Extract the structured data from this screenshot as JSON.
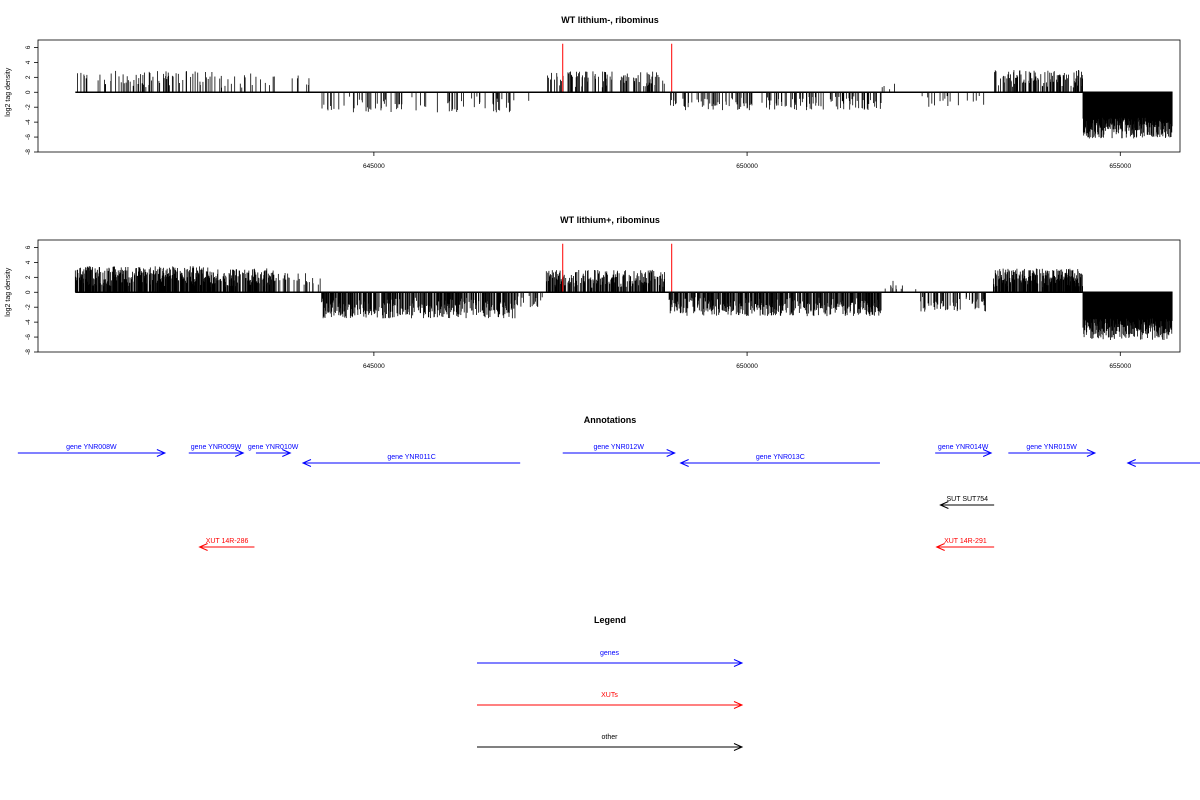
{
  "chart_data": [
    {
      "type": "bar",
      "title": "WT lithium-, ribominus",
      "ylabel": "log2 tag density",
      "xlim": [
        640500,
        655800
      ],
      "ylim": [
        -8,
        7
      ],
      "yticks": [
        6,
        4,
        2,
        0,
        -2,
        -4,
        -6,
        -8
      ],
      "xticks": [
        645000,
        650000,
        655000
      ],
      "xtick_labels": [
        "645000",
        "650000",
        "655000"
      ],
      "grid": false,
      "bar_color": "#000000",
      "highlight_color": "#ff0000",
      "highlights": [
        {
          "x": 647530,
          "value": 6.5
        },
        {
          "x": 648990,
          "value": 6.5
        }
      ],
      "segments": [
        {
          "from": 641000,
          "to": 642850,
          "strand": "+",
          "amp": 2.9,
          "density": 0.2
        },
        {
          "from": 642850,
          "to": 643700,
          "strand": "+",
          "amp": 2.6,
          "density": 0.1
        },
        {
          "from": 643700,
          "to": 644300,
          "strand": "+",
          "amp": 2.4,
          "density": 0.03
        },
        {
          "from": 644300,
          "to": 646900,
          "strand": "-",
          "amp": 2.7,
          "density": 0.12
        },
        {
          "from": 646900,
          "to": 647300,
          "strand": "-",
          "amp": 1.5,
          "density": 0.02
        },
        {
          "from": 647300,
          "to": 648900,
          "strand": "+",
          "amp": 2.8,
          "density": 0.3
        },
        {
          "from": 648950,
          "to": 651800,
          "strand": "-",
          "amp": 2.4,
          "density": 0.22
        },
        {
          "from": 651800,
          "to": 652300,
          "strand": "+",
          "amp": 1.5,
          "density": 0.03
        },
        {
          "from": 652300,
          "to": 653200,
          "strand": "-",
          "amp": 2.0,
          "density": 0.08
        },
        {
          "from": 653300,
          "to": 654500,
          "strand": "+",
          "amp": 3.0,
          "density": 0.4
        },
        {
          "from": 654500,
          "to": 655700,
          "strand": "-",
          "amp": 6.2,
          "density": 1.0
        }
      ]
    },
    {
      "type": "bar",
      "title": "WT lithium+, ribominus",
      "ylabel": "log2 tag density",
      "xlim": [
        640500,
        655800
      ],
      "ylim": [
        -8,
        7
      ],
      "yticks": [
        6,
        4,
        2,
        0,
        -2,
        -4,
        -6,
        -8
      ],
      "xticks": [
        645000,
        650000,
        655000
      ],
      "xtick_labels": [
        "645000",
        "650000",
        "655000"
      ],
      "grid": false,
      "bar_color": "#000000",
      "highlight_color": "#ff0000",
      "highlights": [
        {
          "x": 647530,
          "value": 6.5
        },
        {
          "x": 648990,
          "value": 6.5
        }
      ],
      "segments": [
        {
          "from": 641000,
          "to": 642850,
          "strand": "+",
          "amp": 3.5,
          "density": 0.8
        },
        {
          "from": 642850,
          "to": 643700,
          "strand": "+",
          "amp": 3.2,
          "density": 0.6
        },
        {
          "from": 643700,
          "to": 644300,
          "strand": "+",
          "amp": 2.6,
          "density": 0.2
        },
        {
          "from": 644300,
          "to": 646900,
          "strand": "-",
          "amp": 3.5,
          "density": 0.6
        },
        {
          "from": 646900,
          "to": 647300,
          "strand": "-",
          "amp": 2.0,
          "density": 0.15
        },
        {
          "from": 647300,
          "to": 648900,
          "strand": "+",
          "amp": 3.0,
          "density": 0.6
        },
        {
          "from": 648950,
          "to": 651800,
          "strand": "-",
          "amp": 3.2,
          "density": 0.6
        },
        {
          "from": 651800,
          "to": 652300,
          "strand": "+",
          "amp": 1.6,
          "density": 0.1
        },
        {
          "from": 652300,
          "to": 653200,
          "strand": "-",
          "amp": 2.6,
          "density": 0.3
        },
        {
          "from": 653300,
          "to": 654500,
          "strand": "+",
          "amp": 3.2,
          "density": 0.8
        },
        {
          "from": 654500,
          "to": 655700,
          "strand": "-",
          "amp": 6.4,
          "density": 1.0
        }
      ]
    }
  ],
  "annotations": {
    "title": "Annotations",
    "xlim": [
      640500,
      655800
    ],
    "features": [
      {
        "label": "gene YNR008W",
        "type": "gene",
        "strand": "+",
        "start": 640230,
        "end": 642200,
        "track": 0
      },
      {
        "label": "gene YNR009W",
        "type": "gene",
        "strand": "+",
        "start": 642520,
        "end": 643250,
        "track": 0
      },
      {
        "label": "gene YNR010W",
        "type": "gene",
        "strand": "+",
        "start": 643420,
        "end": 643880,
        "track": 0
      },
      {
        "label": "gene YNR011C",
        "type": "gene",
        "strand": "-",
        "start": 644050,
        "end": 646960,
        "track": 1
      },
      {
        "label": "gene YNR012W",
        "type": "gene",
        "strand": "+",
        "start": 647530,
        "end": 649030,
        "track": 0
      },
      {
        "label": "gene YNR013C",
        "type": "gene",
        "strand": "-",
        "start": 649110,
        "end": 651780,
        "track": 1
      },
      {
        "label": "gene YNR014W",
        "type": "gene",
        "strand": "+",
        "start": 652520,
        "end": 653270,
        "track": 0
      },
      {
        "label": "gene YNR015W",
        "type": "gene",
        "strand": "+",
        "start": 653500,
        "end": 654660,
        "track": 0
      },
      {
        "label": "",
        "type": "gene",
        "strand": "-",
        "start": 655100,
        "end": 656700,
        "track": 1
      },
      {
        "label": "SUT SUT754",
        "type": "other",
        "strand": "-",
        "start": 652590,
        "end": 653310,
        "track": 2
      },
      {
        "label": "XUT 14R-286",
        "type": "xut",
        "strand": "-",
        "start": 642665,
        "end": 643400,
        "track": 3
      },
      {
        "label": "XUT 14R-291",
        "type": "xut",
        "strand": "-",
        "start": 652540,
        "end": 653310,
        "track": 3
      }
    ]
  },
  "legend": {
    "title": "Legend",
    "items": [
      {
        "label": "genes",
        "color": "#0000ff"
      },
      {
        "label": "XUTs",
        "color": "#ff0000"
      },
      {
        "label": "other",
        "color": "#000000"
      }
    ]
  },
  "colors": {
    "gene": "#0000ff",
    "xut": "#ff0000",
    "other": "#000000"
  }
}
